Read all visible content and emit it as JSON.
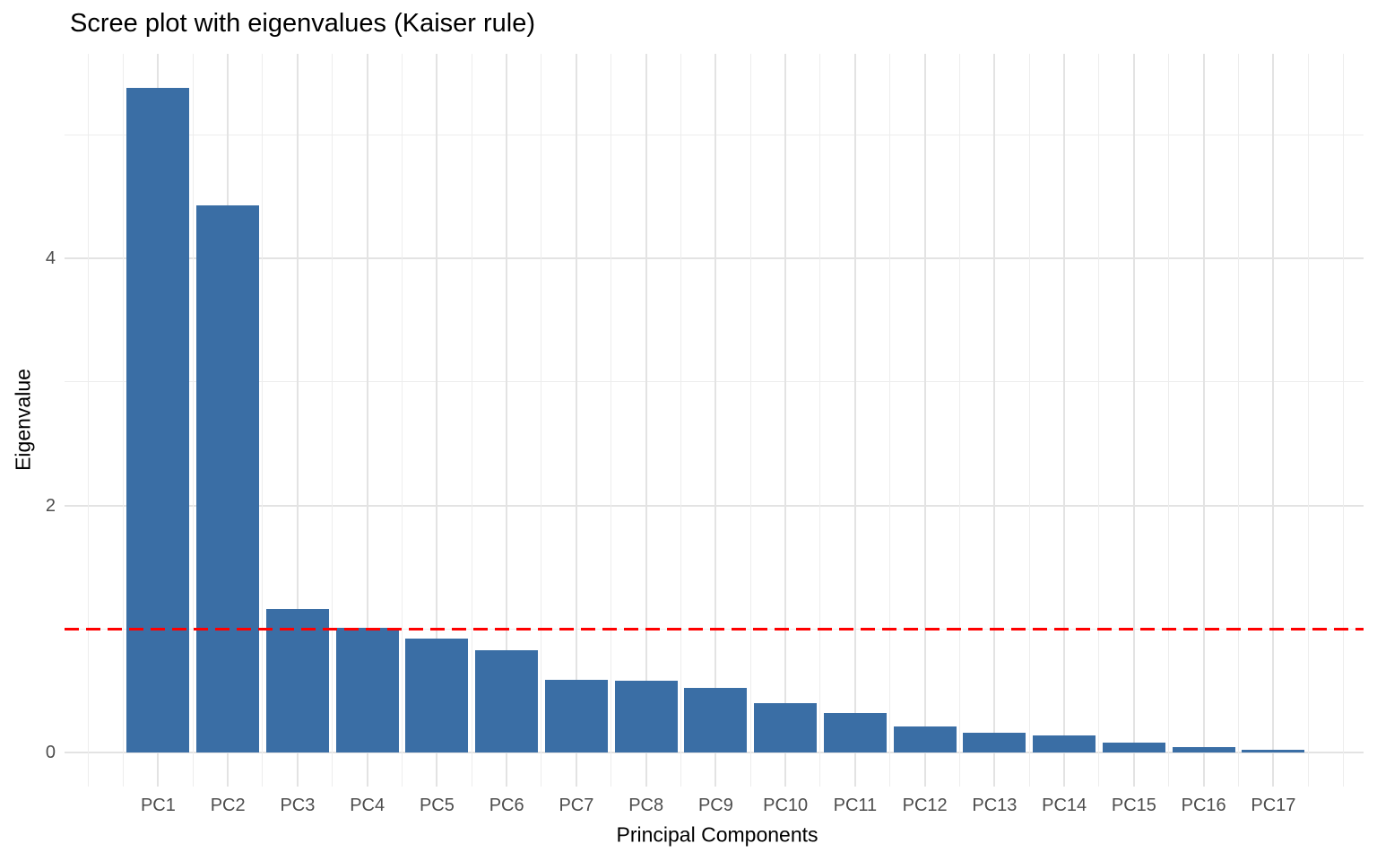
{
  "figure": {
    "title": "Scree plot with eigenvalues (Kaiser rule)"
  },
  "chart_data": {
    "type": "bar",
    "title": "Scree plot with eigenvalues (Kaiser rule)",
    "xlabel": "Principal Components",
    "ylabel": "Eigenvalue",
    "categories": [
      "PC1",
      "PC2",
      "PC3",
      "PC4",
      "PC5",
      "PC6",
      "PC7",
      "PC8",
      "PC9",
      "PC10",
      "PC11",
      "PC12",
      "PC13",
      "PC14",
      "PC15",
      "PC16",
      "PC17"
    ],
    "values": [
      5.38,
      4.43,
      1.16,
      1.01,
      0.92,
      0.83,
      0.59,
      0.58,
      0.52,
      0.4,
      0.32,
      0.21,
      0.16,
      0.14,
      0.08,
      0.04,
      0.02
    ],
    "y_ticks": [
      0,
      2,
      4
    ],
    "y_minor_ticks": [
      1,
      3,
      5
    ],
    "ylim": [
      -0.28,
      5.66
    ],
    "grid": "major+minor, light gray on white",
    "legend_position": "none",
    "bar_color": "#3a6ea5",
    "reference_line": {
      "name": "Kaiser rule threshold",
      "value": 1,
      "color": "#ff0000",
      "style": "dashed"
    }
  }
}
